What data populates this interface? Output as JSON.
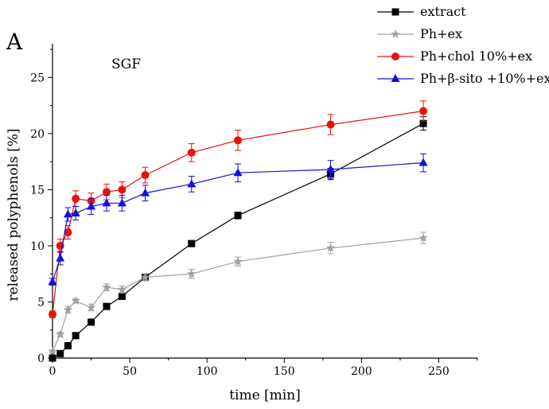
{
  "chart_data": {
    "type": "line",
    "panel_label": "A",
    "annotation": "SGF",
    "xlabel": "time [min]",
    "ylabel": "released polyphenols [%]",
    "xlim": [
      0,
      275
    ],
    "ylim": [
      0,
      28
    ],
    "x_ticks": [
      0,
      50,
      100,
      150,
      200,
      250
    ],
    "y_ticks": [
      0,
      5,
      10,
      15,
      20,
      25
    ],
    "grid": false,
    "legend_position": "top-right",
    "series": [
      {
        "name": "extract",
        "color": "#000000",
        "marker": "square",
        "x": [
          0,
          5,
          10,
          15,
          25,
          35,
          45,
          60,
          90,
          120,
          180,
          240
        ],
        "y": [
          0,
          0.4,
          1.1,
          2.0,
          3.2,
          4.6,
          5.5,
          7.2,
          10.2,
          12.7,
          16.4,
          20.9
        ],
        "err": [
          0,
          0.1,
          0.1,
          0.1,
          0.1,
          0.2,
          0.2,
          0.3,
          0.2,
          0.3,
          0.5,
          0.6
        ]
      },
      {
        "name": "Ph+ex",
        "color": "#a0a0a0",
        "marker": "star",
        "x": [
          0,
          5,
          10,
          15,
          25,
          35,
          45,
          60,
          90,
          120,
          180,
          240
        ],
        "y": [
          0.6,
          2.1,
          4.3,
          5.1,
          4.5,
          6.3,
          6.1,
          7.2,
          7.5,
          8.6,
          9.8,
          10.7
        ],
        "err": [
          0.1,
          0.2,
          0.3,
          0.2,
          0.3,
          0.3,
          0.3,
          0.3,
          0.4,
          0.4,
          0.5,
          0.5
        ]
      },
      {
        "name": "Ph+chol 10%+ex",
        "color": "#e8120c",
        "marker": "circle",
        "x": [
          0,
          5,
          10,
          15,
          25,
          35,
          45,
          60,
          90,
          120,
          180,
          240
        ],
        "y": [
          3.9,
          10.0,
          11.2,
          14.2,
          14.0,
          14.8,
          15.0,
          16.3,
          18.3,
          19.4,
          20.8,
          22.0
        ],
        "err": [
          0.3,
          0.6,
          0.6,
          0.7,
          0.7,
          0.7,
          0.7,
          0.7,
          0.8,
          0.9,
          0.9,
          0.9
        ]
      },
      {
        "name": "Ph+β-sito +10%+ex",
        "color": "#1010e0",
        "marker": "triangle",
        "x": [
          0,
          5,
          10,
          15,
          25,
          35,
          45,
          60,
          90,
          120,
          180,
          240
        ],
        "y": [
          6.8,
          8.9,
          12.8,
          12.9,
          13.5,
          13.8,
          13.8,
          14.7,
          15.5,
          16.5,
          16.8,
          17.4
        ],
        "err": [
          0.3,
          0.6,
          0.6,
          0.6,
          0.7,
          0.7,
          0.7,
          0.7,
          0.7,
          0.8,
          0.8,
          0.8
        ]
      }
    ]
  }
}
